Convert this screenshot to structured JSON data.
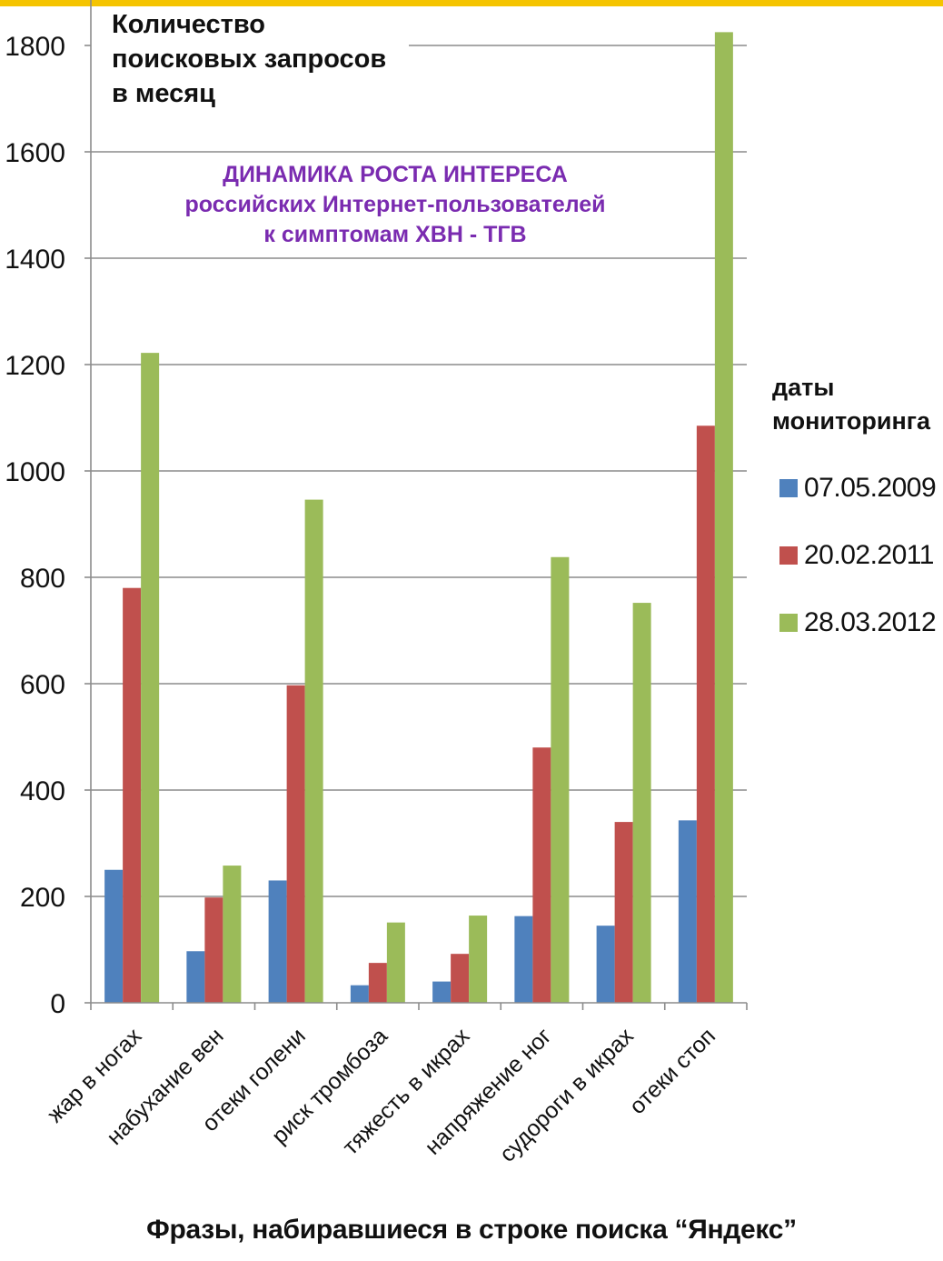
{
  "accent_bar_color": "#f5c400",
  "chart_data": {
    "type": "bar",
    "ylabel_lines": [
      "Количество",
      "поисковых запросов",
      "в месяц"
    ],
    "title_lines": [
      "ДИНАМИКА РОСТА ИНТЕРЕСА",
      "российских Интернет-пользователей",
      "к симптомам ХВН - ТГВ"
    ],
    "title_color": "#7a2bb0",
    "xlabel": "Фразы, набиравшиеся в строке поиска “Яндекс”",
    "legend_title_lines": [
      "даты",
      "мониторинга"
    ],
    "legend_position": "right",
    "categories": [
      "жар в ногах",
      "набухание вен",
      "отеки голени",
      "риск тромбоза",
      "тяжесть в икрах",
      "напряжение ног",
      "судороги в икрах",
      "отеки стоп"
    ],
    "series": [
      {
        "name": "07.05.2009",
        "color": "#4f81bd",
        "values": [
          250,
          97,
          230,
          33,
          40,
          163,
          145,
          343
        ]
      },
      {
        "name": "20.02.2011",
        "color": "#c0504d",
        "values": [
          780,
          198,
          597,
          75,
          92,
          480,
          340,
          1085
        ]
      },
      {
        "name": "28.03.2012",
        "color": "#9bbb59",
        "values": [
          1222,
          258,
          946,
          151,
          164,
          838,
          752,
          1825
        ]
      }
    ],
    "ylim": [
      0,
      1800
    ],
    "yticks": [
      0,
      200,
      400,
      600,
      800,
      1000,
      1200,
      1400,
      1600,
      1800
    ],
    "grid": true
  }
}
